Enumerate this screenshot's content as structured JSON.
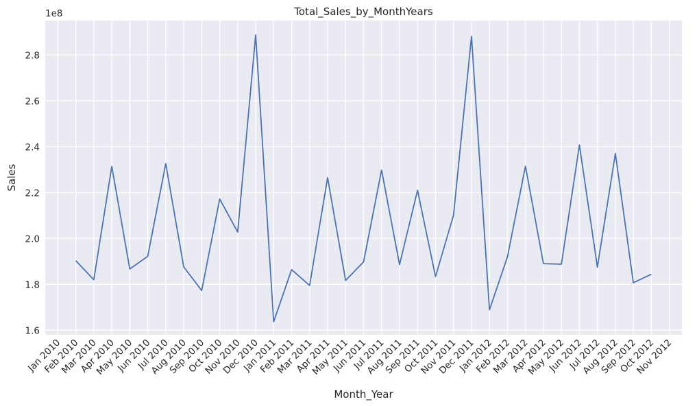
{
  "chart_data": {
    "type": "line",
    "title": "Total_Sales_by_MonthYears",
    "xlabel": "Month_Year",
    "ylabel": "Sales",
    "y_offset_label": "1e8",
    "ylim": [
      1.58,
      2.95
    ],
    "y_ticks": [
      1.6,
      1.8,
      2.0,
      2.2,
      2.4,
      2.6,
      2.8
    ],
    "y_tick_labels": [
      "1.6",
      "1.8",
      "2.0",
      "2.2",
      "2.4",
      "2.6",
      "2.8"
    ],
    "x_tick_labels": [
      "Jan 2010",
      "Feb 2010",
      "Mar 2010",
      "Apr 2010",
      "May 2010",
      "Jun 2010",
      "Jul 2010",
      "Aug 2010",
      "Sep 2010",
      "Oct 2010",
      "Nov 2010",
      "Dec 2010",
      "Jan 2011",
      "Feb 2011",
      "Mar 2011",
      "Apr 2011",
      "May 2011",
      "Jun 2011",
      "Jul 2011",
      "Aug 2011",
      "Sep 2011",
      "Oct 2011",
      "Nov 2011",
      "Dec 2011",
      "Jan 2012",
      "Feb 2012",
      "Mar 2012",
      "Apr 2012",
      "May 2012",
      "Jun 2012",
      "Jul 2012",
      "Aug 2012",
      "Sep 2012",
      "Oct 2012",
      "Nov 2012"
    ],
    "grid": true,
    "background_color": "#eaeaf2",
    "grid_color": "#ffffff",
    "series": [
      {
        "color": "#4c72b0",
        "x": [
          "2010-02",
          "2010-03",
          "2010-04",
          "2010-05",
          "2010-06",
          "2010-07",
          "2010-08",
          "2010-09",
          "2010-10",
          "2010-11",
          "2010-12",
          "2011-01",
          "2011-02",
          "2011-03",
          "2011-04",
          "2011-05",
          "2011-06",
          "2011-07",
          "2011-08",
          "2011-09",
          "2011-10",
          "2011-11",
          "2011-12",
          "2012-01",
          "2012-02",
          "2012-03",
          "2012-04",
          "2012-05",
          "2012-06",
          "2012-07",
          "2012-08",
          "2012-09",
          "2012-10"
        ],
        "values": [
          1.903,
          1.82,
          2.314,
          1.867,
          1.922,
          2.326,
          1.876,
          1.773,
          2.172,
          2.028,
          2.887,
          1.637,
          1.864,
          1.795,
          2.265,
          1.817,
          1.898,
          2.298,
          1.886,
          2.21,
          1.834,
          2.101,
          2.881,
          1.689,
          1.92,
          2.315,
          1.89,
          1.888,
          2.407,
          1.875,
          2.37,
          1.807,
          1.844
        ]
      }
    ]
  }
}
